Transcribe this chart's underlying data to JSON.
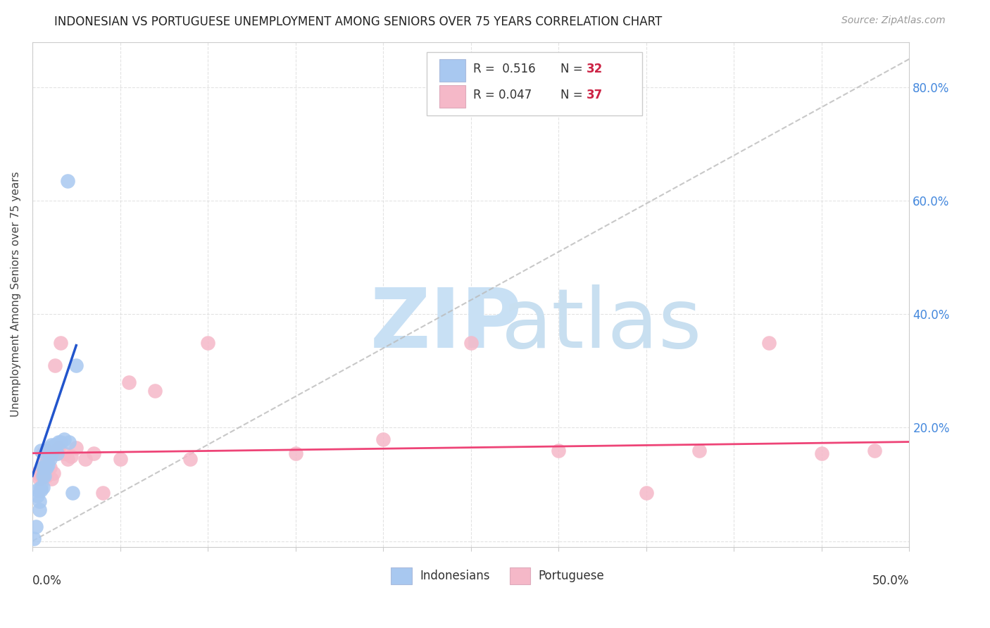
{
  "title": "INDONESIAN VS PORTUGUESE UNEMPLOYMENT AMONG SENIORS OVER 75 YEARS CORRELATION CHART",
  "source": "Source: ZipAtlas.com",
  "ylabel": "Unemployment Among Seniors over 75 years",
  "xlim": [
    0.0,
    0.5
  ],
  "ylim": [
    -0.01,
    0.88
  ],
  "yticks": [
    0.0,
    0.2,
    0.4,
    0.6,
    0.8
  ],
  "ytick_labels": [
    "",
    "20.0%",
    "40.0%",
    "60.0%",
    "80.0%"
  ],
  "indonesian_color": "#a8c8f0",
  "portuguese_color": "#f5b8c8",
  "indonesian_edge_color": "#7aaadd",
  "portuguese_edge_color": "#dd88aa",
  "indonesian_trend_color": "#2255cc",
  "portuguese_trend_color": "#ee4477",
  "ref_line_color": "#bbbbbb",
  "watermark_zip_color": "#c8e0f4",
  "watermark_atlas_color": "#c8dff0",
  "indo_x": [
    0.001,
    0.002,
    0.003,
    0.003,
    0.004,
    0.004,
    0.005,
    0.005,
    0.005,
    0.006,
    0.006,
    0.006,
    0.007,
    0.007,
    0.008,
    0.008,
    0.009,
    0.009,
    0.01,
    0.01,
    0.011,
    0.011,
    0.012,
    0.013,
    0.014,
    0.015,
    0.016,
    0.018,
    0.02,
    0.021,
    0.023,
    0.025
  ],
  "indo_y": [
    0.005,
    0.025,
    0.08,
    0.09,
    0.055,
    0.07,
    0.09,
    0.095,
    0.16,
    0.095,
    0.115,
    0.13,
    0.115,
    0.13,
    0.13,
    0.14,
    0.135,
    0.16,
    0.145,
    0.165,
    0.155,
    0.17,
    0.165,
    0.17,
    0.155,
    0.175,
    0.175,
    0.18,
    0.635,
    0.175,
    0.085,
    0.31
  ],
  "port_x": [
    0.003,
    0.004,
    0.005,
    0.006,
    0.006,
    0.007,
    0.008,
    0.008,
    0.009,
    0.01,
    0.011,
    0.012,
    0.013,
    0.014,
    0.015,
    0.016,
    0.018,
    0.02,
    0.022,
    0.025,
    0.03,
    0.035,
    0.04,
    0.05,
    0.055,
    0.07,
    0.09,
    0.1,
    0.15,
    0.2,
    0.25,
    0.3,
    0.35,
    0.38,
    0.42,
    0.45,
    0.48
  ],
  "port_y": [
    0.12,
    0.11,
    0.115,
    0.125,
    0.155,
    0.135,
    0.115,
    0.16,
    0.145,
    0.13,
    0.11,
    0.12,
    0.31,
    0.155,
    0.165,
    0.35,
    0.155,
    0.145,
    0.15,
    0.165,
    0.145,
    0.155,
    0.085,
    0.145,
    0.28,
    0.265,
    0.145,
    0.35,
    0.155,
    0.18,
    0.35,
    0.16,
    0.085,
    0.16,
    0.35,
    0.155,
    0.16
  ],
  "indo_trend_x": [
    0.0,
    0.025
  ],
  "indo_trend_y": [
    0.115,
    0.345
  ],
  "port_trend_x": [
    0.0,
    0.5
  ],
  "port_trend_y": [
    0.155,
    0.175
  ]
}
